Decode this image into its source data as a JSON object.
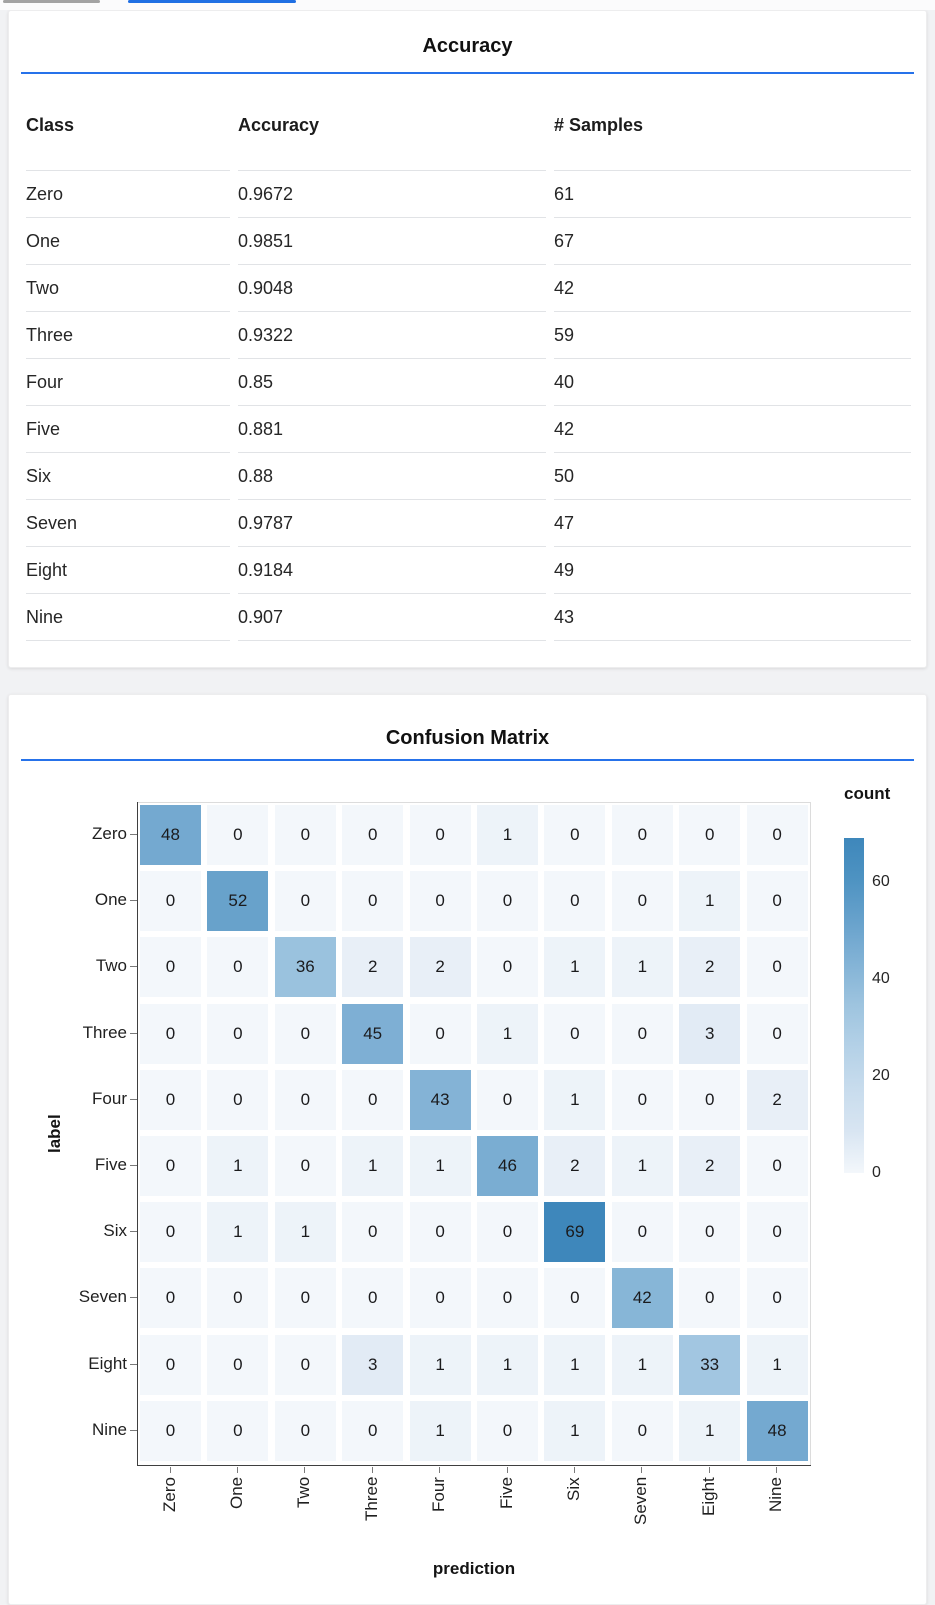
{
  "accent": {
    "rule_blue": "#2672ea",
    "tab_active": "#1f6fe3",
    "tab_inactive": "#a3a3a3"
  },
  "chart_data": [
    {
      "type": "table",
      "title": "Accuracy",
      "columns": [
        "Class",
        "Accuracy",
        "# Samples"
      ],
      "rows": [
        [
          "Zero",
          "0.9672",
          "61"
        ],
        [
          "One",
          "0.9851",
          "67"
        ],
        [
          "Two",
          "0.9048",
          "42"
        ],
        [
          "Three",
          "0.9322",
          "59"
        ],
        [
          "Four",
          "0.85",
          "40"
        ],
        [
          "Five",
          "0.881",
          "42"
        ],
        [
          "Six",
          "0.88",
          "50"
        ],
        [
          "Seven",
          "0.9787",
          "47"
        ],
        [
          "Eight",
          "0.9184",
          "49"
        ],
        [
          "Nine",
          "0.907",
          "43"
        ]
      ]
    },
    {
      "type": "heatmap",
      "title": "Confusion Matrix",
      "xlabel": "prediction",
      "ylabel": "label",
      "x_categories": [
        "Zero",
        "One",
        "Two",
        "Three",
        "Four",
        "Five",
        "Six",
        "Seven",
        "Eight",
        "Nine"
      ],
      "y_categories": [
        "Zero",
        "One",
        "Two",
        "Three",
        "Four",
        "Five",
        "Six",
        "Seven",
        "Eight",
        "Nine"
      ],
      "matrix": [
        [
          48,
          0,
          0,
          0,
          0,
          1,
          0,
          0,
          0,
          0
        ],
        [
          0,
          52,
          0,
          0,
          0,
          0,
          0,
          0,
          1,
          0
        ],
        [
          0,
          0,
          36,
          2,
          2,
          0,
          1,
          1,
          2,
          0
        ],
        [
          0,
          0,
          0,
          45,
          0,
          1,
          0,
          0,
          3,
          0
        ],
        [
          0,
          0,
          0,
          0,
          43,
          0,
          1,
          0,
          0,
          2
        ],
        [
          0,
          1,
          0,
          1,
          1,
          46,
          2,
          1,
          2,
          0
        ],
        [
          0,
          1,
          1,
          0,
          0,
          0,
          69,
          0,
          0,
          0
        ],
        [
          0,
          0,
          0,
          0,
          0,
          0,
          0,
          42,
          0,
          0
        ],
        [
          0,
          0,
          0,
          3,
          1,
          1,
          1,
          1,
          33,
          1
        ],
        [
          0,
          0,
          0,
          0,
          1,
          0,
          1,
          0,
          1,
          48
        ]
      ],
      "legend": {
        "title": "count",
        "ticks": [
          60,
          40,
          20,
          0
        ],
        "domain": [
          0,
          69
        ],
        "position": "right"
      },
      "color_stops": [
        [
          0,
          "#f3f7fb"
        ],
        [
          3,
          "#e2ebf5"
        ],
        [
          20,
          "#c3d9ec"
        ],
        [
          36,
          "#9ac2de"
        ],
        [
          48,
          "#74a9d0"
        ],
        [
          60,
          "#4f93c2"
        ],
        [
          69,
          "#3e87bb"
        ]
      ],
      "grid": false
    }
  ]
}
